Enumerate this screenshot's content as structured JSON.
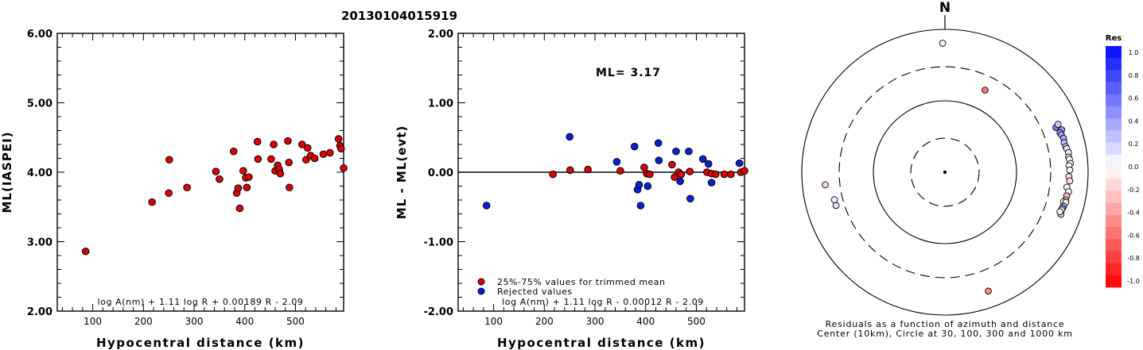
{
  "figure_title": "20130104015919",
  "colors": {
    "red_marker": "#e00000",
    "blue_marker": "#0a1fd6",
    "axis": "#000000"
  },
  "chart_data": [
    {
      "id": "left",
      "type": "scatter",
      "ylabel": "ML(IASPEI)",
      "xlabel": "Hypocentral distance (km)",
      "xlim": [
        30,
        595
      ],
      "ylim": [
        2.0,
        6.0
      ],
      "xticks": [
        100,
        200,
        300,
        400,
        500
      ],
      "yticks": [
        2.0,
        3.0,
        4.0,
        5.0,
        6.0
      ],
      "ytick_labels": [
        "2.00",
        "3.00",
        "4.00",
        "5.00",
        "6.00"
      ],
      "formula": "log A(nm) + 1.11 log R + 0.00189 R - 2.09",
      "series": [
        {
          "color": "red",
          "points": [
            [
              86,
              2.86
            ],
            [
              217,
              3.57
            ],
            [
              250,
              3.7
            ],
            [
              251,
              4.18
            ],
            [
              286,
              3.78
            ],
            [
              343,
              4.01
            ],
            [
              350,
              3.9
            ],
            [
              378,
              4.3
            ],
            [
              384,
              3.7
            ],
            [
              387,
              3.77
            ],
            [
              390,
              3.48
            ],
            [
              397,
              4.02
            ],
            [
              402,
              3.92
            ],
            [
              404,
              3.78
            ],
            [
              408,
              3.93
            ],
            [
              425,
              4.44
            ],
            [
              426,
              4.19
            ],
            [
              452,
              4.19
            ],
            [
              457,
              4.4
            ],
            [
              460,
              4.02
            ],
            [
              465,
              4.1
            ],
            [
              468,
              4.04
            ],
            [
              470,
              3.98
            ],
            [
              485,
              4.45
            ],
            [
              487,
              4.14
            ],
            [
              488,
              3.78
            ],
            [
              513,
              4.4
            ],
            [
              521,
              4.18
            ],
            [
              524,
              4.35
            ],
            [
              530,
              4.24
            ],
            [
              538,
              4.2
            ],
            [
              555,
              4.26
            ],
            [
              568,
              4.28
            ],
            [
              585,
              4.48
            ],
            [
              588,
              4.38
            ],
            [
              590,
              4.34
            ],
            [
              595,
              4.06
            ]
          ]
        }
      ]
    },
    {
      "id": "middle",
      "type": "scatter",
      "ylabel": "ML - ML(evt)",
      "xlabel": "Hypocentral distance (km)",
      "xlim": [
        30,
        595
      ],
      "ylim": [
        -2.0,
        2.0
      ],
      "xticks": [
        100,
        200,
        300,
        400,
        500
      ],
      "yticks": [
        -2.0,
        -1.0,
        0.0,
        1.0,
        2.0
      ],
      "ytick_labels": [
        "-2.00",
        "-1.00",
        "0.00",
        "1.00",
        "2.00"
      ],
      "annotation": "ML= 3.17",
      "legend": [
        "25%-75% values for trimmed mean",
        "Rejected values"
      ],
      "formula": "log A(nm) + 1.11 log R - 0.00012 R - 2.09",
      "series": [
        {
          "name": "25%-75% values for trimmed mean",
          "color": "red",
          "points": [
            [
              217,
              -0.03
            ],
            [
              251,
              0.03
            ],
            [
              286,
              0.04
            ],
            [
              350,
              0.02
            ],
            [
              397,
              0.07
            ],
            [
              402,
              -0.02
            ],
            [
              408,
              -0.03
            ],
            [
              452,
              0.11
            ],
            [
              457,
              -0.07
            ],
            [
              465,
              0.0
            ],
            [
              470,
              -0.03
            ],
            [
              487,
              0.01
            ],
            [
              521,
              0.0
            ],
            [
              530,
              -0.02
            ],
            [
              538,
              -0.03
            ],
            [
              555,
              -0.03
            ],
            [
              568,
              -0.03
            ],
            [
              588,
              0.0
            ],
            [
              595,
              0.02
            ]
          ]
        },
        {
          "name": "Rejected values",
          "color": "blue",
          "points": [
            [
              86,
              -0.48
            ],
            [
              250,
              0.51
            ],
            [
              343,
              0.15
            ],
            [
              378,
              0.37
            ],
            [
              384,
              -0.25
            ],
            [
              387,
              -0.18
            ],
            [
              390,
              -0.48
            ],
            [
              404,
              -0.2
            ],
            [
              425,
              0.42
            ],
            [
              426,
              0.17
            ],
            [
              460,
              0.3
            ],
            [
              468,
              -0.13
            ],
            [
              485,
              0.3
            ],
            [
              488,
              -0.38
            ],
            [
              513,
              0.19
            ],
            [
              524,
              0.12
            ],
            [
              530,
              -0.15
            ],
            [
              585,
              0.13
            ]
          ]
        }
      ]
    },
    {
      "id": "polar",
      "type": "scatter",
      "north_label": "N",
      "caption_line1": "Residuals as a function of azimuth and distance",
      "caption_line2": "Center (10km), Circle at 30, 100, 300 and 1000 km",
      "colorbar_title": "Res",
      "colorbar_ticks": [
        "1.0",
        "0.8",
        "0.6",
        "0.4",
        "0.2",
        "0.0",
        "-0.2",
        "-0.4",
        "-0.6",
        "-0.8",
        "-1.0"
      ],
      "rings_km": [
        30,
        100,
        300,
        1000
      ],
      "points_format": "[azimuth_deg, distance_km, residual]",
      "points": [
        [
          -1,
          640,
          0.05
        ],
        [
          26,
          190,
          -0.55
        ],
        [
          68,
          470,
          0.55
        ],
        [
          67,
          520,
          0.2
        ],
        [
          70,
          545,
          0.4
        ],
        [
          71,
          500,
          0.3
        ],
        [
          72,
          510,
          0.4
        ],
        [
          74,
          530,
          0.35
        ],
        [
          76,
          520,
          0.25
        ],
        [
          78,
          530,
          0.2
        ],
        [
          79,
          540,
          0.1
        ],
        [
          81,
          560,
          0.05
        ],
        [
          83,
          550,
          0.05
        ],
        [
          84,
          560,
          0.0
        ],
        [
          86,
          570,
          0.0
        ],
        [
          87,
          545,
          0.0
        ],
        [
          89,
          555,
          0.0
        ],
        [
          92,
          540,
          -0.15
        ],
        [
          94,
          560,
          -0.1
        ],
        [
          97,
          520,
          0.05
        ],
        [
          99,
          560,
          0.0
        ],
        [
          101,
          540,
          -0.3
        ],
        [
          103,
          535,
          -0.2
        ],
        [
          104,
          510,
          0.0
        ],
        [
          104,
          550,
          -0.1
        ],
        [
          106,
          530,
          0.3
        ],
        [
          107,
          520,
          0.45
        ],
        [
          108,
          515,
          0.0
        ],
        [
          110,
          530,
          -0.2
        ],
        [
          109,
          500,
          0.05
        ],
        [
          160,
          590,
          -0.45
        ],
        [
          253,
          390,
          0.1
        ],
        [
          256,
          390,
          0.05
        ],
        [
          264,
          480,
          -0.15
        ]
      ]
    }
  ]
}
